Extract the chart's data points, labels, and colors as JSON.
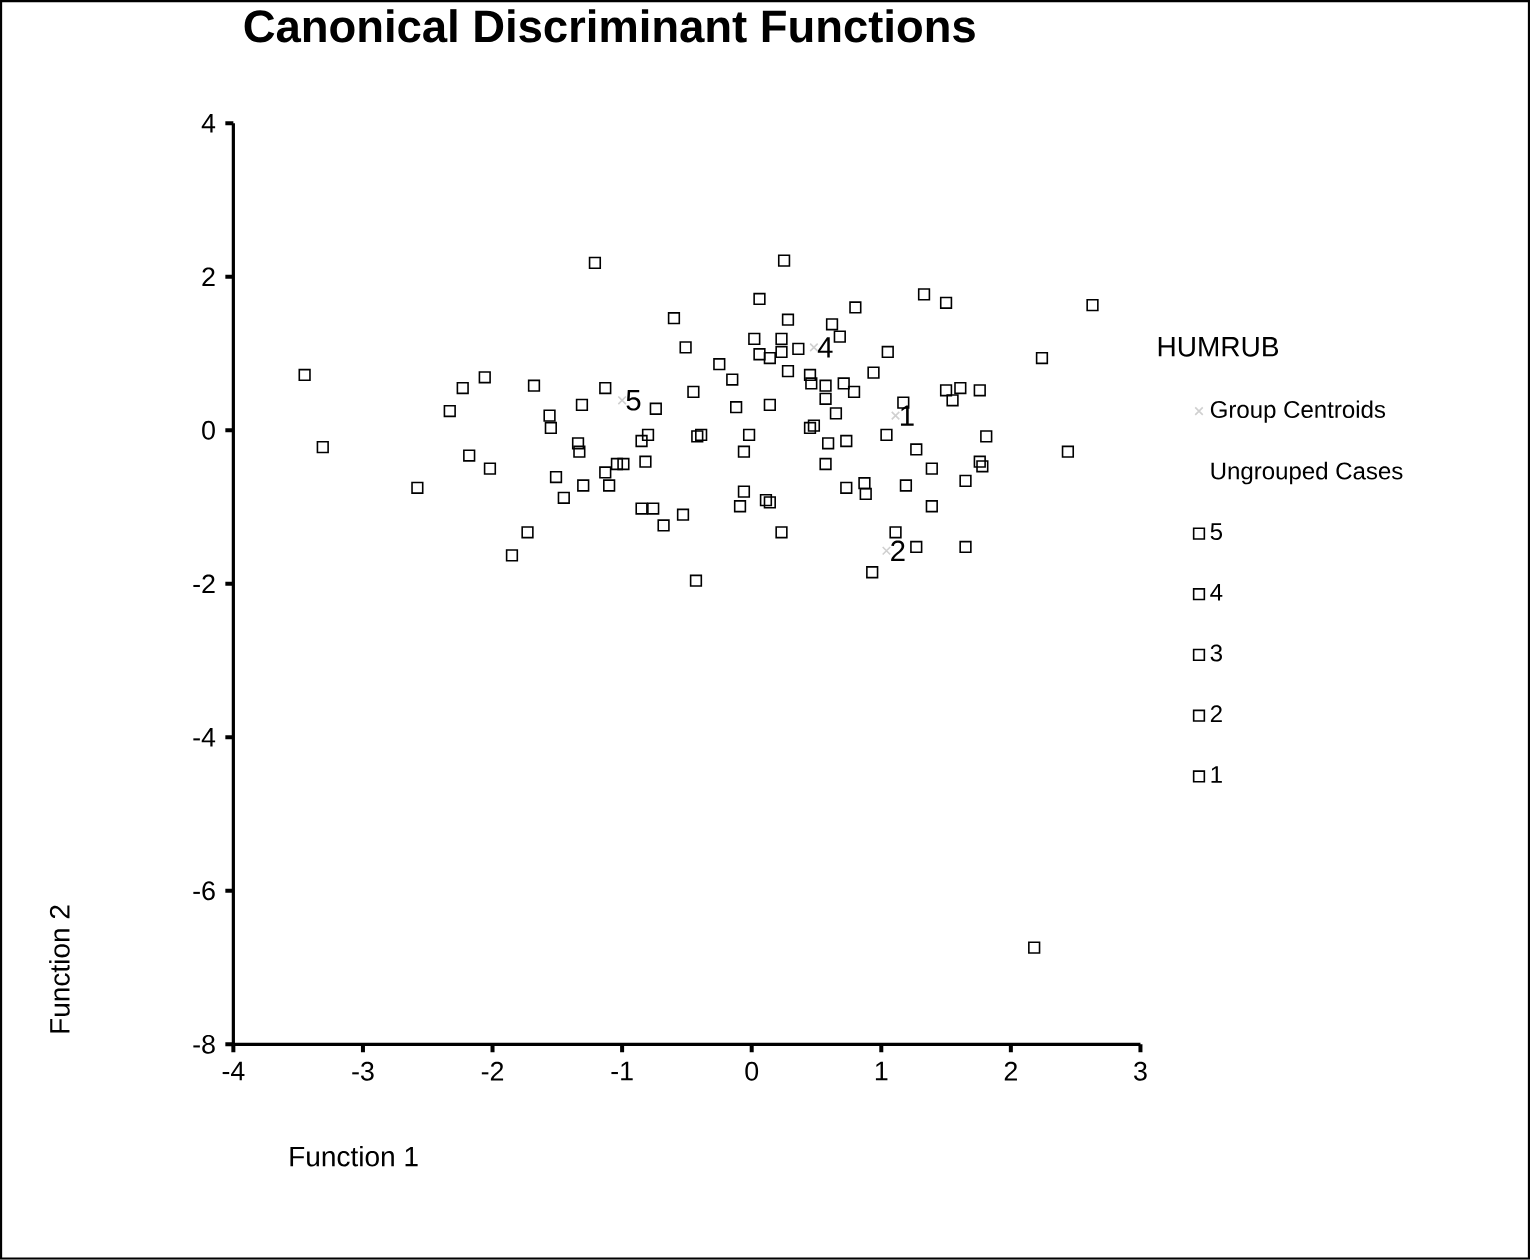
{
  "chart_data": {
    "type": "scatter",
    "title": "Canonical Discriminant Functions",
    "xlabel": "Function 1",
    "ylabel": "Function 2",
    "legend_title": "HUMRUB",
    "legend": "right",
    "marker": "square",
    "grid": false,
    "xlim": [
      -4,
      3
    ],
    "xticks": [
      -4,
      -3,
      -2,
      -1,
      0,
      1,
      2,
      3
    ],
    "ylim": [
      -8,
      4
    ],
    "yticks": [
      -8,
      -6,
      -4,
      -2,
      0,
      2,
      4
    ],
    "annotations": [
      {
        "text": "5",
        "x": -1.0,
        "y": 0.39
      },
      {
        "text": "4",
        "x": 0.48,
        "y": 1.08
      },
      {
        "text": "1",
        "x": 1.11,
        "y": 0.19
      },
      {
        "text": "2",
        "x": 1.04,
        "y": -1.57
      }
    ],
    "series": [
      {
        "name": "Group Centroids",
        "color": "#d0d0d0",
        "marker": "cross",
        "x": [
          -1.0,
          0.48,
          1.11,
          1.04
        ],
        "values": [
          0.39,
          1.08,
          0.19,
          -1.57
        ]
      },
      {
        "name": "Ungrouped Cases",
        "color": "#000000",
        "marker": "none"
      },
      {
        "name": "5",
        "color": "#000000",
        "x": [
          -1.21,
          -0.6,
          -0.51,
          -3.45,
          -3.31,
          -2.06,
          -2.23,
          -2.33,
          -1.68,
          -1.31,
          -1.13,
          -0.74,
          -0.45,
          -1.56,
          -1.55,
          -1.34,
          -1.33,
          -0.8,
          -0.85,
          -0.82,
          -0.42,
          -2.18,
          -2.02,
          -2.58,
          -1.51,
          -1.3,
          -1.45,
          -1.13,
          -1.1,
          -1.04,
          -0.99,
          -0.85,
          -0.76,
          -0.68,
          -0.53,
          -1.73,
          -1.85,
          -0.43
        ],
        "values": [
          2.18,
          1.46,
          1.08,
          0.72,
          -0.22,
          0.69,
          0.55,
          0.25,
          0.58,
          0.33,
          0.55,
          0.28,
          0.5,
          0.19,
          0.03,
          -0.17,
          -0.28,
          -0.06,
          -0.14,
          -0.41,
          -0.08,
          -0.33,
          -0.5,
          -0.75,
          -0.61,
          -0.72,
          -0.88,
          -0.55,
          -0.72,
          -0.44,
          -0.44,
          -1.02,
          -1.02,
          -1.24,
          -1.1,
          -1.33,
          -1.63,
          -1.96
        ]
      },
      {
        "name": "4",
        "color": "#000000",
        "x": [
          0.8,
          0.62,
          0.68,
          0.36,
          1.05,
          0.28,
          0.94,
          0.45,
          0.46,
          0.57,
          0.71,
          0.79,
          0.57,
          0.65,
          0.48,
          0.45,
          0.59
        ],
        "values": [
          1.6,
          1.38,
          1.22,
          1.06,
          1.02,
          0.77,
          0.75,
          0.72,
          0.61,
          0.58,
          0.61,
          0.5,
          0.41,
          0.22,
          0.06,
          0.03,
          -0.17
        ]
      },
      {
        "name": "3",
        "color": "#000000",
        "x": [
          0.25,
          0.06,
          0.28,
          0.02,
          0.23,
          0.06,
          0.14,
          0.23,
          -0.25,
          -0.15,
          -0.12,
          0.14,
          -0.39,
          -0.02,
          -0.06,
          -0.06,
          -0.09,
          0.11,
          0.14,
          0.23
        ],
        "values": [
          2.21,
          1.71,
          1.44,
          1.19,
          1.19,
          0.99,
          0.94,
          1.02,
          0.86,
          0.66,
          0.3,
          0.33,
          -0.06,
          -0.06,
          -0.28,
          -0.8,
          -0.99,
          -0.91,
          -0.94,
          -1.33
        ]
      },
      {
        "name": "2",
        "color": "#000000",
        "x": [
          0.57,
          1.39,
          1.65,
          1.19,
          1.39,
          0.73,
          0.87,
          0.88,
          1.11,
          1.27,
          1.65,
          0.93,
          2.18
        ],
        "values": [
          -0.44,
          -0.5,
          -0.66,
          -0.72,
          -0.99,
          -0.75,
          -0.69,
          -0.83,
          -1.33,
          -1.52,
          -1.52,
          -1.85,
          -6.74
        ]
      },
      {
        "name": "1",
        "color": "#000000",
        "x": [
          1.33,
          1.5,
          2.63,
          1.17,
          1.04,
          1.5,
          1.61,
          1.76,
          1.55,
          2.24,
          1.81,
          2.44,
          0.73,
          1.27,
          1.76,
          1.78
        ],
        "values": [
          1.77,
          1.66,
          1.63,
          0.36,
          -0.06,
          0.52,
          0.55,
          0.52,
          0.39,
          0.94,
          -0.08,
          -0.28,
          -0.14,
          -0.25,
          -0.41,
          -0.47
        ]
      }
    ]
  }
}
